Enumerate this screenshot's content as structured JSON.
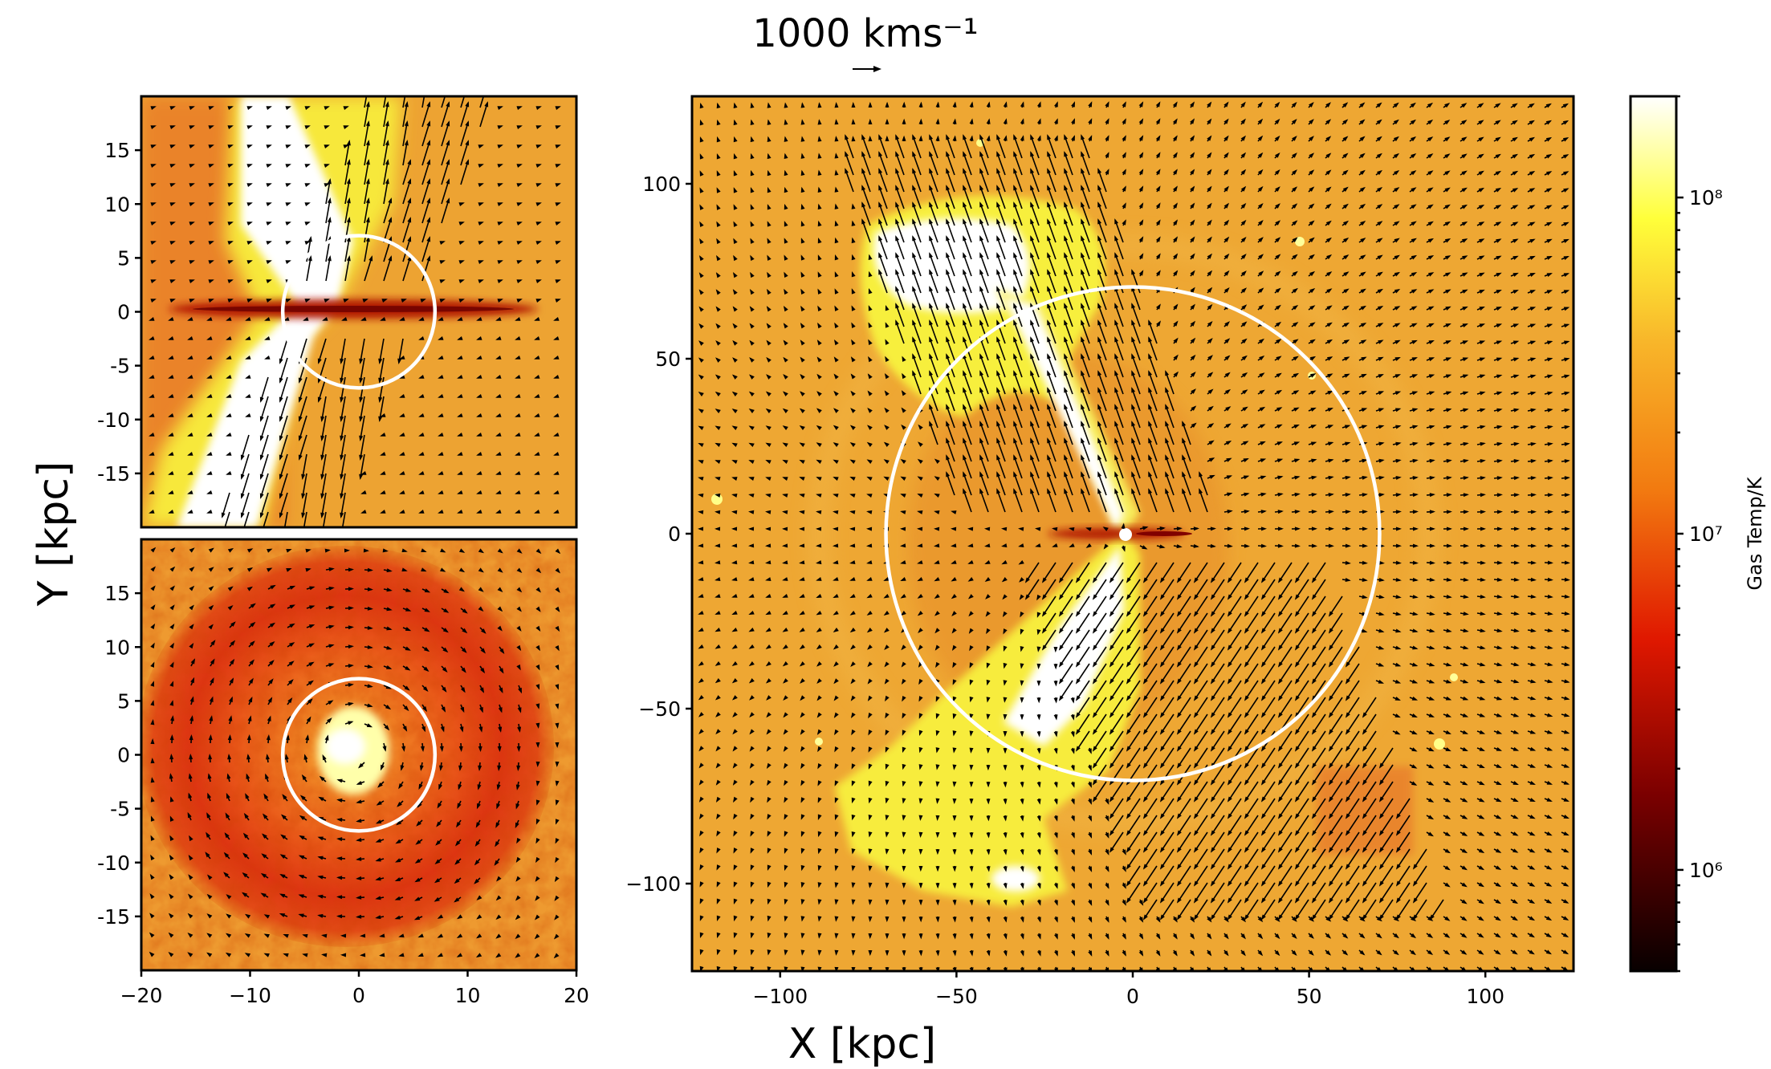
{
  "figure": {
    "x_axis_label": "X [kpc]",
    "y_axis_label": "Y [kpc]",
    "velocity_scale_label": "1000 kms⁻¹",
    "colorbar": {
      "label": "Gas Temp/K",
      "colormap": "hot",
      "min_value": 500000,
      "max_value": 200000000,
      "scale": "log",
      "tick_labels": [
        "10⁶",
        "10⁷",
        "10⁸"
      ],
      "tick_values": [
        1000000,
        10000000,
        100000000
      ]
    },
    "panels": {
      "edge_on": {
        "x_range": [
          -20,
          20
        ],
        "y_range": [
          -20,
          20
        ],
        "y_ticks": [
          -15,
          -10,
          -5,
          0,
          5,
          10,
          15
        ],
        "y_tick_labels": [
          "-15",
          "-10",
          "-5",
          "0",
          "5",
          "10",
          "15"
        ],
        "circle_radius_kpc": 7
      },
      "face_on": {
        "x_range": [
          -20,
          20
        ],
        "y_range": [
          -20,
          20
        ],
        "x_ticks": [
          -20,
          -10,
          0,
          10,
          20
        ],
        "x_tick_labels": [
          "−20",
          "−10",
          "0",
          "10",
          "20"
        ],
        "y_ticks": [
          -15,
          -10,
          -5,
          0,
          5,
          10,
          15
        ],
        "y_tick_labels": [
          "-15",
          "-10",
          "-5",
          "0",
          "5",
          "10",
          "15"
        ],
        "circle_radius_kpc": 7
      },
      "large": {
        "x_range": [
          -125,
          125
        ],
        "y_range": [
          -125,
          125
        ],
        "x_ticks": [
          -100,
          -50,
          0,
          50,
          100
        ],
        "x_tick_labels": [
          "−100",
          "−50",
          "0",
          "50",
          "100"
        ],
        "y_ticks": [
          -100,
          -50,
          0,
          50,
          100
        ],
        "y_tick_labels": [
          "−100",
          "−50",
          "0",
          "50",
          "100"
        ],
        "circle_radius_kpc": 70
      }
    }
  }
}
